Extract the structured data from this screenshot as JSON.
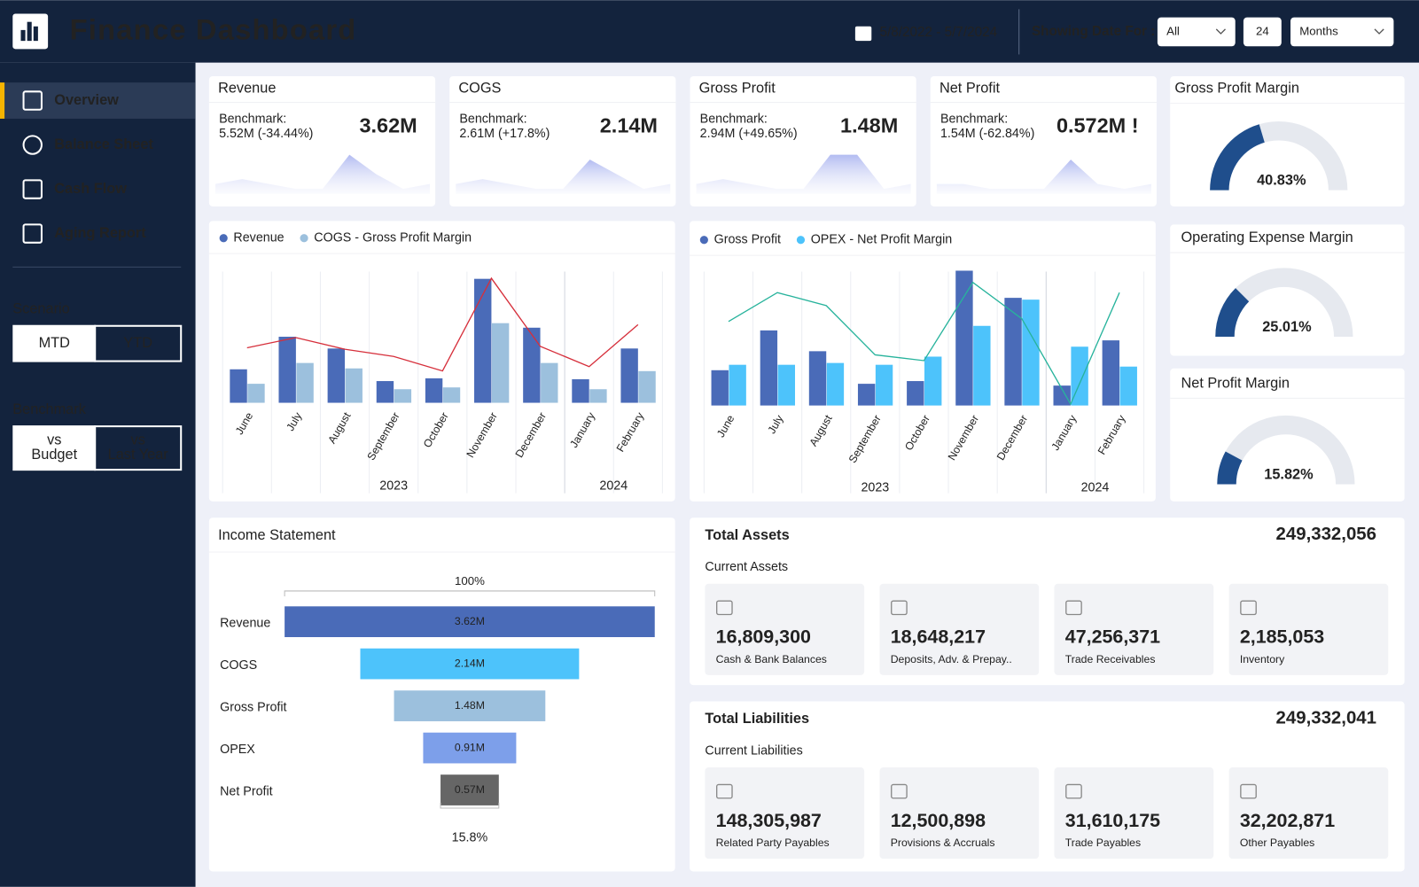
{
  "header": {
    "title": "Finance Dashboard",
    "date_range": "5/8/2022 - 5/7/2024",
    "showing_label": "Showing Date For :",
    "filter": "All",
    "count": "24",
    "unit": "Months"
  },
  "sidebar": {
    "menu": [
      "Overview",
      "Balance Sheet",
      "Cash Flow",
      "Aging Report"
    ],
    "scenario_label": "Scenario",
    "scenario": [
      [
        "MTD"
      ],
      [
        "YTD"
      ]
    ],
    "benchmark_label": "Benchmark",
    "benchmark": [
      [
        "vs",
        "Budget"
      ],
      [
        "vs",
        "Last Year"
      ]
    ]
  },
  "kpis": [
    {
      "title": "Revenue",
      "benchmark_label": "Benchmark:",
      "benchmark": "5.52M (-34.44%)",
      "value": "3.62M",
      "color": "#c8102e",
      "spark": {
        "values": [
          2,
          3,
          2,
          1,
          1,
          8,
          4,
          1,
          2
        ],
        "ylim": [
          0,
          10
        ]
      }
    },
    {
      "title": "COGS",
      "benchmark_label": "Benchmark:",
      "benchmark": "2.61M (+17.8%)",
      "value": "2.14M",
      "color": "#1f9a3a",
      "spark": {
        "values": [
          2,
          3,
          2,
          1,
          1,
          7,
          4,
          1,
          2
        ],
        "ylim": [
          0,
          10
        ]
      }
    },
    {
      "title": "Gross Profit",
      "benchmark_label": "Benchmark:",
      "benchmark": "2.94M (+49.65%)",
      "value": "1.48M",
      "color": "#c8102e",
      "spark": {
        "values": [
          2,
          3,
          2,
          1,
          1,
          8,
          8,
          1,
          2
        ],
        "ylim": [
          0,
          10
        ]
      }
    },
    {
      "title": "Net Profit",
      "benchmark_label": "Benchmark:",
      "benchmark": "1.54M (-62.84%)",
      "value": "0.572M !",
      "color": "#c8102e",
      "spark": {
        "values": [
          2,
          2,
          1,
          1,
          1,
          7,
          2,
          1,
          2
        ],
        "ylim": [
          0,
          10
        ]
      }
    }
  ],
  "chart_data": [
    {
      "type": "combo",
      "categories": [
        "June",
        "July",
        "August",
        "September",
        "October",
        "November",
        "December",
        "January",
        "February"
      ],
      "x_groups": [
        {
          "label": "2023",
          "size": 7
        },
        {
          "label": "2024",
          "size": 2
        }
      ],
      "ylim": [
        0,
        160
      ],
      "y2lim": [
        0,
        100
      ],
      "series": [
        {
          "name": "Revenue",
          "color": "#4a6bb8",
          "values": [
            37,
            73,
            60,
            24,
            27,
            137,
            83,
            26,
            60
          ]
        },
        {
          "name": "COGS - Gross Profit Margin",
          "color": "#9cc0dd",
          "values": [
            21,
            44,
            38,
            15,
            17,
            88,
            44,
            15,
            35
          ]
        },
        {
          "color": "#d62f3b",
          "axis": "y2",
          "values": [
            38,
            45,
            37,
            32,
            22,
            86,
            39,
            25,
            54
          ]
        }
      ]
    },
    {
      "type": "combo",
      "categories": [
        "June",
        "July",
        "August",
        "September",
        "October",
        "November",
        "December",
        "January",
        "February"
      ],
      "x_groups": [
        {
          "label": "2023",
          "size": 7
        },
        {
          "label": "2024",
          "size": 2
        }
      ],
      "ylim": [
        0,
        160
      ],
      "y2lim": [
        0,
        100
      ],
      "series": [
        {
          "name": "Gross Profit",
          "color": "#4a6bb8",
          "values": [
            39,
            83,
            60,
            24,
            27,
            149,
            119,
            22,
            72
          ]
        },
        {
          "name": "OPEX - Net Profit Margin",
          "color": "#4dc3fb",
          "values": [
            45,
            45,
            47,
            45,
            54,
            88,
            117,
            65,
            43
          ]
        },
        {
          "color": "#27b39c",
          "axis": "y2",
          "values": [
            58,
            78,
            69,
            35,
            31,
            85,
            60,
            1,
            78
          ]
        }
      ]
    },
    {
      "type": "funnel",
      "title": "Income Statement",
      "categories": [
        "Revenue",
        "COGS",
        "Gross Profit",
        "OPEX",
        "Net Profit"
      ],
      "values": [
        3.62,
        2.14,
        1.48,
        0.91,
        0.57
      ],
      "value_labels": [
        "3.62M",
        "2.14M",
        "1.48M",
        "0.91M",
        "0.57M"
      ],
      "colors": [
        "#4a6bb8",
        "#4dc3fb",
        "#9cc0dd",
        "#7d9fea",
        "#666666"
      ],
      "top_label": "100%",
      "bottom_label": "15.8%"
    },
    {
      "type": "gauge",
      "title": "Gross Profit Margin",
      "values": [
        40.83
      ],
      "value_labels": [
        "40.83%"
      ],
      "ylim": [
        0,
        100
      ],
      "color": "#1f4e8c"
    },
    {
      "type": "gauge",
      "title": "Operating Expense Margin",
      "values": [
        25.01
      ],
      "value_labels": [
        "25.01%"
      ],
      "ylim": [
        0,
        100
      ],
      "color": "#1f4e8c"
    },
    {
      "type": "gauge",
      "title": "Net Profit Margin",
      "values": [
        15.82
      ],
      "value_labels": [
        "15.82%"
      ],
      "ylim": [
        0,
        100
      ],
      "color": "#1f4e8c"
    }
  ],
  "assets": {
    "title": "Total Assets",
    "total": "249,332,056",
    "subtitle": "Current Assets",
    "items": [
      {
        "value": "16,809,300",
        "label": "Cash & Bank Balances"
      },
      {
        "value": "18,648,217",
        "label": "Deposits, Adv. & Prepay.."
      },
      {
        "value": "47,256,371",
        "label": "Trade Receivables"
      },
      {
        "value": "2,185,053",
        "label": "Inventory"
      }
    ]
  },
  "liabilities": {
    "title": "Total Liabilities",
    "total": "249,332,041",
    "subtitle": "Current Liabilities",
    "items": [
      {
        "value": "148,305,987",
        "label": "Related Party Payables"
      },
      {
        "value": "12,500,898",
        "label": "Provisions & Accruals"
      },
      {
        "value": "31,610,175",
        "label": "Trade Payables"
      },
      {
        "value": "32,202,871",
        "label": "Other Payables"
      }
    ]
  }
}
